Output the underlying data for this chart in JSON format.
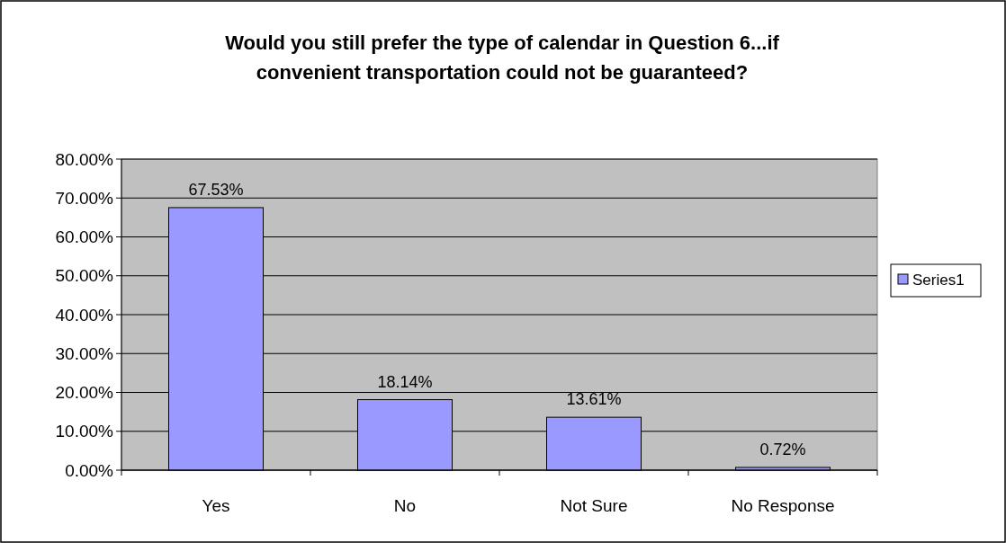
{
  "chart_data": {
    "type": "bar",
    "title": "Would you still prefer the type of calendar in Question 6...if convenient transportation could not be guaranteed?",
    "categories": [
      "Yes",
      "No",
      "Not Sure",
      "No Response"
    ],
    "series": [
      {
        "name": "Series1",
        "color": "#9999ff",
        "values": [
          67.53,
          18.14,
          13.61,
          0.72
        ],
        "value_labels": [
          "67.53%",
          "18.14%",
          "13.61%",
          "0.72%"
        ]
      }
    ],
    "ylim": [
      0,
      80
    ],
    "yticks": [
      {
        "value": 0,
        "label": "0.00%"
      },
      {
        "value": 10,
        "label": "10.00%"
      },
      {
        "value": 20,
        "label": "20.00%"
      },
      {
        "value": 30,
        "label": "30.00%"
      },
      {
        "value": 40,
        "label": "40.00%"
      },
      {
        "value": 50,
        "label": "50.00%"
      },
      {
        "value": 60,
        "label": "60.00%"
      },
      {
        "value": 70,
        "label": "70.00%"
      },
      {
        "value": 80,
        "label": "80.00%"
      }
    ],
    "grid": "y",
    "legend": "right"
  }
}
